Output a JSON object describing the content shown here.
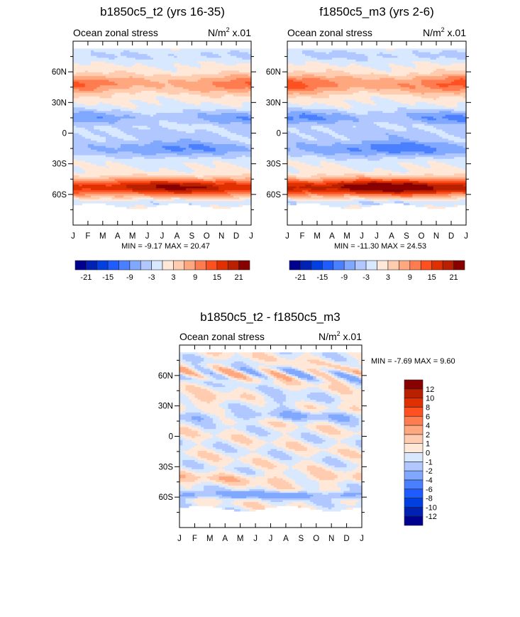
{
  "chart_data": [
    {
      "type": "heatmap",
      "title": "b1850c5_t2 (yrs 16-35)",
      "left_label": "Ocean zonal stress",
      "units": {
        "base": "N/m",
        "exp": "2",
        "suffix": " x.01"
      },
      "x_ticks": [
        "J",
        "F",
        "M",
        "A",
        "M",
        "J",
        "J",
        "A",
        "S",
        "O",
        "N",
        "D",
        "J"
      ],
      "y_ticks": [
        "60N",
        "30N",
        "0",
        "30S",
        "60S"
      ],
      "y_tick_values": [
        60,
        30,
        0,
        -30,
        -60
      ],
      "ylim": [
        -90,
        90
      ],
      "stats": "MIN =  -9.17 MAX =  20.47",
      "min": -9.17,
      "max": 20.47,
      "scale": 1.0,
      "levels": [
        -21,
        -18,
        -15,
        -12,
        -9,
        -6,
        -3,
        0,
        3,
        6,
        9,
        12,
        15,
        18,
        21
      ],
      "level_labels": [
        "-21",
        "-15",
        "-9",
        "-3",
        "3",
        "9",
        "15",
        "21"
      ],
      "colors": [
        "#00008f",
        "#0022b4",
        "#0040e0",
        "#1e5cff",
        "#4a80ff",
        "#80a8ff",
        "#b0c8ff",
        "#d8e8ff",
        "#ffe8d8",
        "#ffccb0",
        "#ffa880",
        "#ff7c50",
        "#ff5020",
        "#e03000",
        "#b82000",
        "#880000"
      ]
    },
    {
      "type": "heatmap",
      "title": "f1850c5_m3 (yrs 2-6)",
      "left_label": "Ocean zonal stress",
      "units": {
        "base": "N/m",
        "exp": "2",
        "suffix": " x.01"
      },
      "x_ticks": [
        "J",
        "F",
        "M",
        "A",
        "M",
        "J",
        "J",
        "A",
        "S",
        "O",
        "N",
        "D",
        "J"
      ],
      "y_ticks": [
        "60N",
        "30N",
        "0",
        "30S",
        "60S"
      ],
      "y_tick_values": [
        60,
        30,
        0,
        -30,
        -60
      ],
      "ylim": [
        -90,
        90
      ],
      "stats": "MIN = -11.30 MAX =  24.53",
      "min": -11.3,
      "max": 24.53,
      "scale": 1.15,
      "levels": [
        -21,
        -18,
        -15,
        -12,
        -9,
        -6,
        -3,
        0,
        3,
        6,
        9,
        12,
        15,
        18,
        21
      ],
      "level_labels": [
        "-21",
        "-15",
        "-9",
        "-3",
        "3",
        "9",
        "15",
        "21"
      ],
      "colors": [
        "#00008f",
        "#0022b4",
        "#0040e0",
        "#1e5cff",
        "#4a80ff",
        "#80a8ff",
        "#b0c8ff",
        "#d8e8ff",
        "#ffe8d8",
        "#ffccb0",
        "#ffa880",
        "#ff7c50",
        "#ff5020",
        "#e03000",
        "#b82000",
        "#880000"
      ]
    },
    {
      "type": "heatmap",
      "title": "b1850c5_t2 - f1850c5_m3",
      "left_label": "Ocean zonal stress",
      "units": {
        "base": "N/m",
        "exp": "2",
        "suffix": " x.01"
      },
      "x_ticks": [
        "J",
        "F",
        "M",
        "A",
        "M",
        "J",
        "J",
        "A",
        "S",
        "O",
        "N",
        "D",
        "J"
      ],
      "y_ticks": [
        "60N",
        "30N",
        "0",
        "30S",
        "60S"
      ],
      "y_tick_values": [
        60,
        30,
        0,
        -30,
        -60
      ],
      "ylim": [
        -90,
        90
      ],
      "stats": "MIN =  -7.69 MAX =   9.60",
      "min": -7.69,
      "max": 9.6,
      "levels": [
        -12,
        -10,
        -8,
        -6,
        -4,
        -2,
        -1,
        0,
        1,
        2,
        4,
        6,
        8,
        10,
        12
      ],
      "level_labels": [
        "-12",
        "-10",
        "-8",
        "-6",
        "-4",
        "-2",
        "-1",
        "0",
        "1",
        "2",
        "4",
        "6",
        "8",
        "10",
        "12"
      ],
      "colors": [
        "#00008f",
        "#0022b4",
        "#0040e0",
        "#1e5cff",
        "#4a80ff",
        "#80a8ff",
        "#b0c8ff",
        "#d8e8ff",
        "#ffe8d8",
        "#ffccb0",
        "#ffa880",
        "#ff7c50",
        "#ff5020",
        "#e03000",
        "#b82000",
        "#880000"
      ]
    }
  ]
}
